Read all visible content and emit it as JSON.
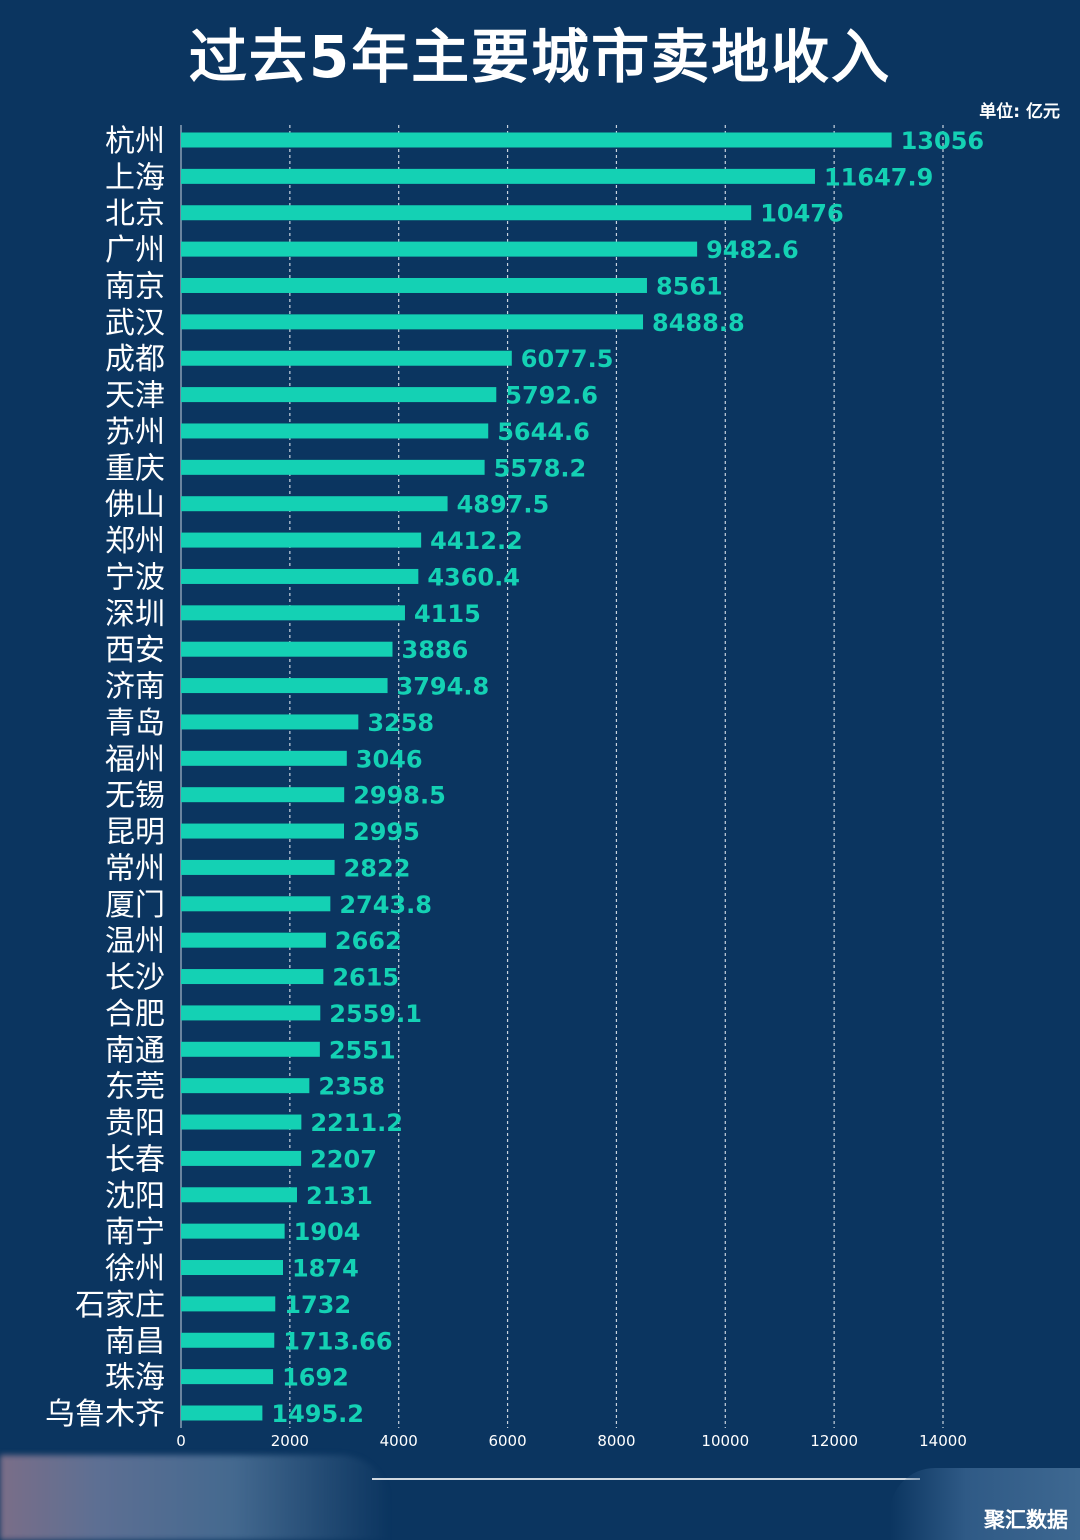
{
  "header": {
    "title": "过去5年主要城市卖地收入",
    "unit": "单位: 亿元"
  },
  "footer": {
    "brand": "聚汇数据"
  },
  "colors": {
    "background": "#0b3560",
    "bar": "#14d1b4",
    "value_label": "#14d1b4",
    "text": "#ffffff",
    "grid": "#c9d3de"
  },
  "chart_data": {
    "type": "bar",
    "orientation": "horizontal",
    "title": "过去5年主要城市卖地收入",
    "unit": "单位: 亿元",
    "categories": [
      "杭州",
      "上海",
      "北京",
      "广州",
      "南京",
      "武汉",
      "成都",
      "天津",
      "苏州",
      "重庆",
      "佛山",
      "郑州",
      "宁波",
      "深圳",
      "西安",
      "济南",
      "青岛",
      "福州",
      "无锡",
      "昆明",
      "常州",
      "厦门",
      "温州",
      "长沙",
      "合肥",
      "南通",
      "东莞",
      "贵阳",
      "长春",
      "沈阳",
      "南宁",
      "徐州",
      "石家庄",
      "南昌",
      "珠海",
      "乌鲁木齐"
    ],
    "values": [
      13056,
      11647.9,
      10476,
      9482.6,
      8561,
      8488.8,
      6077.5,
      5792.6,
      5644.6,
      5578.2,
      4897.5,
      4412.2,
      4360.4,
      4115,
      3886,
      3794.8,
      3258,
      3046,
      2998.5,
      2995,
      2822,
      2743.8,
      2662,
      2615,
      2559.1,
      2551,
      2358,
      2211.2,
      2207,
      2131,
      1904,
      1874,
      1732,
      1713.66,
      1692,
      1495.2
    ],
    "value_labels": [
      "13056",
      "11647.9",
      "10476",
      "9482.6",
      "8561",
      "8488.8",
      "6077.5",
      "5792.6",
      "5644.6",
      "5578.2",
      "4897.5",
      "4412.2",
      "4360.4",
      "4115",
      "3886",
      "3794.8",
      "3258",
      "3046",
      "2998.5",
      "2995",
      "2822",
      "2743.8",
      "2662",
      "2615",
      "2559.1",
      "2551",
      "2358",
      "2211.2",
      "2207",
      "2131",
      "1904",
      "1874",
      "1732",
      "1713.66",
      "1692",
      "1495.2"
    ],
    "xlim": [
      0,
      14000
    ],
    "xticks": [
      "0",
      "2000",
      "4000",
      "6000",
      "8000",
      "10000",
      "12000",
      "14000"
    ],
    "xtick_values": [
      0,
      2000,
      4000,
      6000,
      8000,
      10000,
      12000,
      14000
    ],
    "grid": "vertical-dashed"
  }
}
